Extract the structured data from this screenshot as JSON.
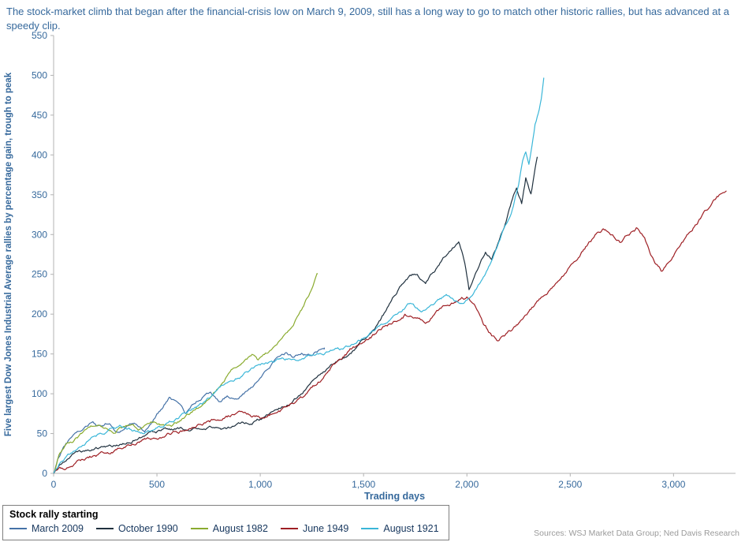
{
  "page": {
    "title": "The stock-market climb that began after the financial-crisis low on March 9, 2009, still has a long way to go to match other historic rallies, but has advanced at a speedy clip.",
    "source": "Sources: WSJ Market Data Group; Ned Davis Research"
  },
  "legend": {
    "title": "Stock rally starting"
  },
  "colors": {
    "title_text": "#36699c",
    "axis_text": "#36699c",
    "axis_line": "#b3b3b3",
    "legend_border": "#7f7f7f",
    "legend_text": "#17375e",
    "source_text": "#9a9a9a"
  },
  "chart_data": {
    "type": "line",
    "title": "Five largest Dow Jones Industrial Average rallies",
    "xlabel": "Trading days",
    "ylabel": "Five largest Dow Jones Industrial Average rallies by percentage gain, trough to peak",
    "xlim": [
      0,
      3300
    ],
    "ylim": [
      0,
      550
    ],
    "x_ticks": [
      0,
      500,
      1000,
      1500,
      2000,
      2500,
      3000
    ],
    "x_tick_labels": [
      "0",
      "500",
      "1,000",
      "1,500",
      "2,000",
      "2,500",
      "3,000"
    ],
    "y_ticks": [
      0,
      50,
      100,
      150,
      200,
      250,
      300,
      350,
      400,
      450,
      500,
      550
    ],
    "grid": false,
    "legend_position": "bottom-left",
    "axis_color": "#b3b3b3",
    "text_color": "#36699c",
    "series": [
      {
        "name": "March 2009",
        "color": "#4572a7",
        "noise": 3,
        "points": [
          [
            0,
            0
          ],
          [
            20,
            18
          ],
          [
            45,
            33
          ],
          [
            75,
            42
          ],
          [
            110,
            48
          ],
          [
            150,
            55
          ],
          [
            190,
            62
          ],
          [
            230,
            58
          ],
          [
            270,
            64
          ],
          [
            310,
            52
          ],
          [
            350,
            60
          ],
          [
            400,
            64
          ],
          [
            440,
            55
          ],
          [
            480,
            68
          ],
          [
            520,
            82
          ],
          [
            560,
            95
          ],
          [
            600,
            85
          ],
          [
            640,
            73
          ],
          [
            680,
            86
          ],
          [
            720,
            95
          ],
          [
            760,
            100
          ],
          [
            800,
            90
          ],
          [
            840,
            97
          ],
          [
            880,
            92
          ],
          [
            920,
            100
          ],
          [
            960,
            110
          ],
          [
            1000,
            122
          ],
          [
            1040,
            132
          ],
          [
            1080,
            143
          ],
          [
            1120,
            150
          ],
          [
            1160,
            146
          ],
          [
            1200,
            152
          ],
          [
            1240,
            148
          ],
          [
            1280,
            155
          ],
          [
            1310,
            158
          ]
        ]
      },
      {
        "name": "October 1990",
        "color": "#20313f",
        "noise": 3,
        "points": [
          [
            0,
            0
          ],
          [
            40,
            10
          ],
          [
            90,
            20
          ],
          [
            150,
            26
          ],
          [
            210,
            30
          ],
          [
            280,
            34
          ],
          [
            350,
            40
          ],
          [
            420,
            46
          ],
          [
            480,
            50
          ],
          [
            540,
            54
          ],
          [
            600,
            57
          ],
          [
            660,
            55
          ],
          [
            720,
            58
          ],
          [
            780,
            60
          ],
          [
            840,
            57
          ],
          [
            900,
            60
          ],
          [
            960,
            64
          ],
          [
            1020,
            70
          ],
          [
            1080,
            78
          ],
          [
            1140,
            88
          ],
          [
            1200,
            100
          ],
          [
            1260,
            115
          ],
          [
            1320,
            128
          ],
          [
            1380,
            142
          ],
          [
            1440,
            152
          ],
          [
            1500,
            168
          ],
          [
            1560,
            185
          ],
          [
            1620,
            210
          ],
          [
            1680,
            235
          ],
          [
            1720,
            248
          ],
          [
            1760,
            252
          ],
          [
            1800,
            238
          ],
          [
            1840,
            252
          ],
          [
            1880,
            268
          ],
          [
            1920,
            282
          ],
          [
            1960,
            292
          ],
          [
            1990,
            265
          ],
          [
            2010,
            232
          ],
          [
            2030,
            245
          ],
          [
            2060,
            262
          ],
          [
            2090,
            280
          ],
          [
            2120,
            272
          ],
          [
            2150,
            290
          ],
          [
            2180,
            310
          ],
          [
            2210,
            335
          ],
          [
            2240,
            358
          ],
          [
            2265,
            340
          ],
          [
            2285,
            372
          ],
          [
            2310,
            352
          ],
          [
            2340,
            396
          ]
        ]
      },
      {
        "name": "August 1982",
        "color": "#8aab2f",
        "noise": 3,
        "points": [
          [
            0,
            0
          ],
          [
            25,
            22
          ],
          [
            55,
            34
          ],
          [
            90,
            40
          ],
          [
            130,
            48
          ],
          [
            170,
            56
          ],
          [
            210,
            62
          ],
          [
            250,
            58
          ],
          [
            290,
            54
          ],
          [
            330,
            60
          ],
          [
            370,
            64
          ],
          [
            410,
            58
          ],
          [
            450,
            62
          ],
          [
            490,
            66
          ],
          [
            530,
            62
          ],
          [
            570,
            58
          ],
          [
            610,
            64
          ],
          [
            650,
            72
          ],
          [
            690,
            80
          ],
          [
            730,
            90
          ],
          [
            770,
            102
          ],
          [
            810,
            115
          ],
          [
            850,
            128
          ],
          [
            890,
            138
          ],
          [
            930,
            146
          ],
          [
            960,
            150
          ],
          [
            990,
            140
          ],
          [
            1020,
            146
          ],
          [
            1050,
            152
          ],
          [
            1080,
            158
          ],
          [
            1110,
            168
          ],
          [
            1140,
            180
          ],
          [
            1170,
            192
          ],
          [
            1200,
            206
          ],
          [
            1230,
            222
          ],
          [
            1255,
            236
          ],
          [
            1276,
            250
          ]
        ]
      },
      {
        "name": "June 1949",
        "color": "#9e1f24",
        "noise": 3.5,
        "points": [
          [
            0,
            0
          ],
          [
            60,
            8
          ],
          [
            130,
            15
          ],
          [
            200,
            22
          ],
          [
            270,
            28
          ],
          [
            340,
            34
          ],
          [
            410,
            40
          ],
          [
            480,
            45
          ],
          [
            550,
            50
          ],
          [
            620,
            54
          ],
          [
            690,
            58
          ],
          [
            760,
            64
          ],
          [
            830,
            70
          ],
          [
            900,
            76
          ],
          [
            950,
            72
          ],
          [
            1000,
            70
          ],
          [
            1050,
            75
          ],
          [
            1100,
            80
          ],
          [
            1150,
            88
          ],
          [
            1200,
            96
          ],
          [
            1250,
            106
          ],
          [
            1300,
            118
          ],
          [
            1350,
            132
          ],
          [
            1400,
            145
          ],
          [
            1450,
            157
          ],
          [
            1500,
            166
          ],
          [
            1550,
            175
          ],
          [
            1600,
            184
          ],
          [
            1650,
            192
          ],
          [
            1700,
            200
          ],
          [
            1750,
            196
          ],
          [
            1800,
            192
          ],
          [
            1850,
            202
          ],
          [
            1900,
            212
          ],
          [
            1950,
            220
          ],
          [
            2000,
            222
          ],
          [
            2040,
            210
          ],
          [
            2080,
            190
          ],
          [
            2120,
            175
          ],
          [
            2150,
            167
          ],
          [
            2180,
            172
          ],
          [
            2220,
            180
          ],
          [
            2260,
            190
          ],
          [
            2300,
            202
          ],
          [
            2350,
            218
          ],
          [
            2400,
            232
          ],
          [
            2450,
            246
          ],
          [
            2500,
            258
          ],
          [
            2540,
            272
          ],
          [
            2580,
            286
          ],
          [
            2620,
            298
          ],
          [
            2660,
            308
          ],
          [
            2700,
            302
          ],
          [
            2740,
            292
          ],
          [
            2780,
            300
          ],
          [
            2820,
            308
          ],
          [
            2860,
            298
          ],
          [
            2900,
            272
          ],
          [
            2940,
            255
          ],
          [
            2970,
            262
          ],
          [
            3000,
            275
          ],
          [
            3040,
            290
          ],
          [
            3080,
            305
          ],
          [
            3120,
            318
          ],
          [
            3160,
            330
          ],
          [
            3200,
            342
          ],
          [
            3230,
            350
          ],
          [
            3255,
            355
          ]
        ]
      },
      {
        "name": "August 1921",
        "color": "#3ab6d8",
        "noise": 3,
        "points": [
          [
            0,
            0
          ],
          [
            30,
            14
          ],
          [
            70,
            24
          ],
          [
            120,
            32
          ],
          [
            170,
            40
          ],
          [
            220,
            48
          ],
          [
            270,
            54
          ],
          [
            320,
            57
          ],
          [
            370,
            54
          ],
          [
            420,
            50
          ],
          [
            470,
            54
          ],
          [
            520,
            58
          ],
          [
            570,
            64
          ],
          [
            620,
            72
          ],
          [
            670,
            80
          ],
          [
            720,
            88
          ],
          [
            760,
            98
          ],
          [
            800,
            106
          ],
          [
            840,
            112
          ],
          [
            880,
            118
          ],
          [
            920,
            124
          ],
          [
            960,
            130
          ],
          [
            1000,
            134
          ],
          [
            1050,
            138
          ],
          [
            1100,
            142
          ],
          [
            1150,
            145
          ],
          [
            1200,
            142
          ],
          [
            1250,
            147
          ],
          [
            1300,
            150
          ],
          [
            1350,
            153
          ],
          [
            1400,
            155
          ],
          [
            1450,
            162
          ],
          [
            1500,
            170
          ],
          [
            1550,
            178
          ],
          [
            1600,
            188
          ],
          [
            1650,
            198
          ],
          [
            1700,
            208
          ],
          [
            1740,
            215
          ],
          [
            1780,
            205
          ],
          [
            1820,
            212
          ],
          [
            1860,
            220
          ],
          [
            1900,
            224
          ],
          [
            1940,
            214
          ],
          [
            1980,
            212
          ],
          [
            2020,
            222
          ],
          [
            2060,
            238
          ],
          [
            2100,
            258
          ],
          [
            2140,
            280
          ],
          [
            2180,
            305
          ],
          [
            2220,
            332
          ],
          [
            2250,
            362
          ],
          [
            2270,
            390
          ],
          [
            2285,
            402
          ],
          [
            2300,
            388
          ],
          [
            2315,
            412
          ],
          [
            2330,
            438
          ],
          [
            2345,
            452
          ],
          [
            2360,
            470
          ],
          [
            2372,
            497
          ]
        ]
      }
    ]
  }
}
